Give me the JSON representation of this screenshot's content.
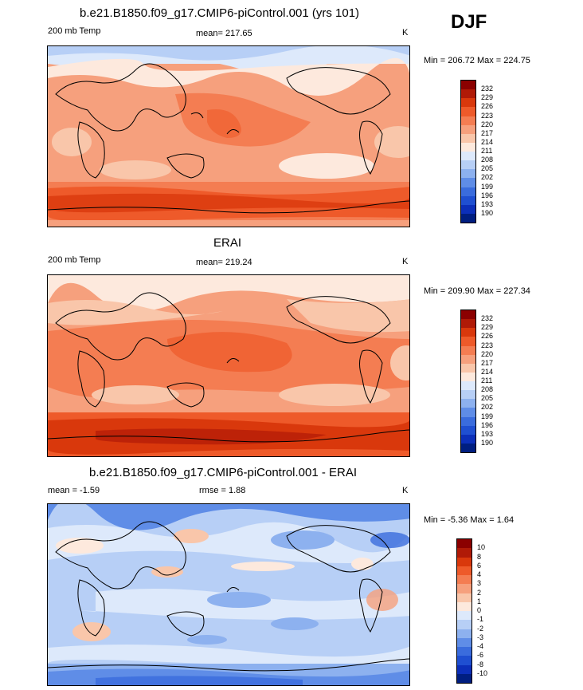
{
  "season": "DJF",
  "panels": [
    {
      "title": "b.e21.B1850.f09_g17.CMIP6-piControl.001 (yrs 101)",
      "left": "200 mb Temp",
      "center": "mean= 217.65",
      "right": "K",
      "minmax": "Min = 206.72 Max = 224.75",
      "colorbar": {
        "labels": [
          "232",
          "229",
          "226",
          "223",
          "220",
          "217",
          "214",
          "211",
          "208",
          "205",
          "202",
          "199",
          "196",
          "193",
          "190"
        ],
        "colors": [
          "#8b0000",
          "#b01a07",
          "#d9380c",
          "#ee5a2a",
          "#f47d52",
          "#f6a07d",
          "#f9c6aa",
          "#fde9dd",
          "#dde9fb",
          "#b7cff6",
          "#8db1ef",
          "#5f8de7",
          "#3a6cdd",
          "#1f4fd1",
          "#0c2fb9",
          "#001e80"
        ]
      }
    },
    {
      "title": "ERAI",
      "left": "200 mb Temp",
      "center": "mean= 219.24",
      "right": "K",
      "minmax": "Min = 209.90 Max = 227.34",
      "colorbar": {
        "labels": [
          "232",
          "229",
          "226",
          "223",
          "220",
          "217",
          "214",
          "211",
          "208",
          "205",
          "202",
          "199",
          "196",
          "193",
          "190"
        ],
        "colors": [
          "#8b0000",
          "#b01a07",
          "#d9380c",
          "#ee5a2a",
          "#f47d52",
          "#f6a07d",
          "#f9c6aa",
          "#fde9dd",
          "#dde9fb",
          "#b7cff6",
          "#8db1ef",
          "#5f8de7",
          "#3a6cdd",
          "#1f4fd1",
          "#0c2fb9",
          "#001e80"
        ]
      }
    },
    {
      "title": "b.e21.B1850.f09_g17.CMIP6-piControl.001 - ERAI",
      "left": "mean =  -1.59",
      "center": "rmse =   1.88",
      "right": "K",
      "minmax": "Min =  -5.36 Max =   1.64",
      "colorbar": {
        "labels": [
          "10",
          "8",
          "6",
          "4",
          "3",
          "2",
          "1",
          "0",
          "-1",
          "-2",
          "-3",
          "-4",
          "-6",
          "-8",
          "-10"
        ],
        "colors": [
          "#8b0000",
          "#b01a07",
          "#d9380c",
          "#ee5a2a",
          "#f47d52",
          "#f6a07d",
          "#f9c6aa",
          "#fde9dd",
          "#dde9fb",
          "#b7cff6",
          "#8db1ef",
          "#5f8de7",
          "#3a6cdd",
          "#1f4fd1",
          "#0c2fb9",
          "#001e80"
        ]
      }
    }
  ]
}
